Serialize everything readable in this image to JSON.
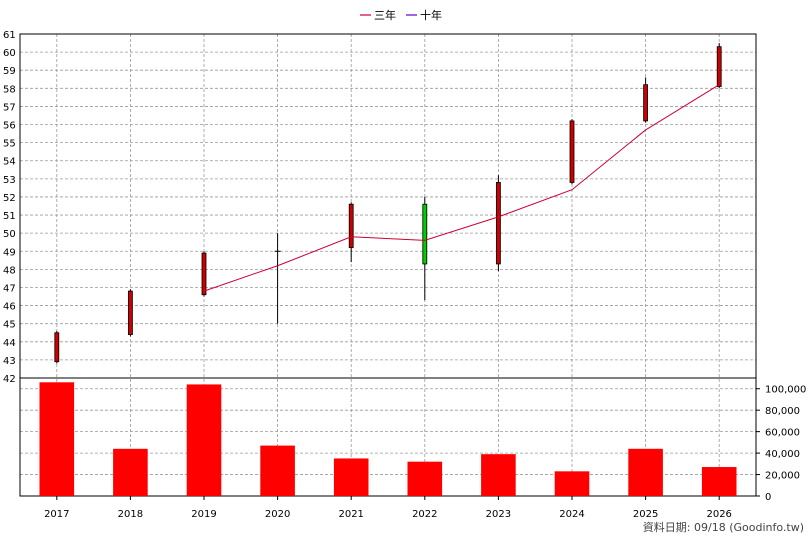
{
  "chart_data": {
    "type": "candlestick+bar",
    "categories": [
      "2017",
      "2018",
      "2019",
      "2020",
      "2021",
      "2022",
      "2023",
      "2024",
      "2025",
      "2026"
    ],
    "legend": [
      {
        "label": "三年",
        "color": "#cc0033"
      },
      {
        "label": "十年",
        "color": "#6600cc"
      }
    ],
    "price_axis": {
      "range": [
        42,
        61
      ],
      "ticks": [
        "42",
        "43",
        "44",
        "45",
        "46",
        "47",
        "48",
        "49",
        "50",
        "51",
        "52",
        "53",
        "54",
        "55",
        "56",
        "57",
        "58",
        "59",
        "60",
        "61"
      ]
    },
    "volume_axis": {
      "range": [
        0,
        110000
      ],
      "ticks": [
        "0",
        "20,000",
        "40,000",
        "60,000",
        "80,000",
        "100,000"
      ],
      "tick_values": [
        0,
        20000,
        40000,
        60000,
        80000,
        100000
      ]
    },
    "candles": [
      {
        "x": "2017",
        "open": 42.9,
        "close": 44.5,
        "high": 44.6,
        "low": 42.8,
        "color": "#cc0000"
      },
      {
        "x": "2018",
        "open": 44.4,
        "close": 46.8,
        "high": 46.9,
        "low": 44.3,
        "color": "#cc0000"
      },
      {
        "x": "2019",
        "open": 46.6,
        "close": 48.9,
        "high": 49.0,
        "low": 46.5,
        "color": "#cc0000"
      },
      {
        "x": "2020",
        "open": 49.0,
        "close": 49.0,
        "high": 50.0,
        "low": 45.0,
        "color": "#000000"
      },
      {
        "x": "2021",
        "open": 49.2,
        "close": 51.6,
        "high": 51.7,
        "low": 48.4,
        "color": "#cc0000"
      },
      {
        "x": "2022",
        "open": 51.6,
        "close": 48.3,
        "high": 52.0,
        "low": 46.3,
        "color": "#00cc00"
      },
      {
        "x": "2023",
        "open": 48.3,
        "close": 52.8,
        "high": 53.2,
        "low": 47.9,
        "color": "#cc0000"
      },
      {
        "x": "2024",
        "open": 52.8,
        "close": 56.2,
        "high": 56.3,
        "low": 52.7,
        "color": "#cc0000"
      },
      {
        "x": "2025",
        "open": 56.2,
        "close": 58.2,
        "high": 58.6,
        "low": 56.1,
        "color": "#cc0000"
      },
      {
        "x": "2026",
        "open": 58.1,
        "close": 60.3,
        "high": 60.5,
        "low": 58.0,
        "color": "#cc0000"
      }
    ],
    "three_year_line": [
      {
        "x": "2019",
        "y": 46.8
      },
      {
        "x": "2020",
        "y": 48.2
      },
      {
        "x": "2021",
        "y": 49.8
      },
      {
        "x": "2022",
        "y": 49.6
      },
      {
        "x": "2023",
        "y": 50.9
      },
      {
        "x": "2024",
        "y": 52.4
      },
      {
        "x": "2025",
        "y": 55.7
      },
      {
        "x": "2026",
        "y": 58.2
      }
    ],
    "volume": [
      {
        "x": "2017",
        "value": 106000
      },
      {
        "x": "2018",
        "value": 44000
      },
      {
        "x": "2019",
        "value": 104000
      },
      {
        "x": "2020",
        "value": 47000
      },
      {
        "x": "2021",
        "value": 35000
      },
      {
        "x": "2022",
        "value": 32000
      },
      {
        "x": "2023",
        "value": 39000
      },
      {
        "x": "2024",
        "value": 23000
      },
      {
        "x": "2025",
        "value": 44000
      },
      {
        "x": "2026",
        "value": 27000
      }
    ],
    "bar_color": "#ff0000",
    "grid": true,
    "legend_position": "top-center",
    "source_note": "資料日期: 09/18 (Goodinfo.tw)"
  }
}
